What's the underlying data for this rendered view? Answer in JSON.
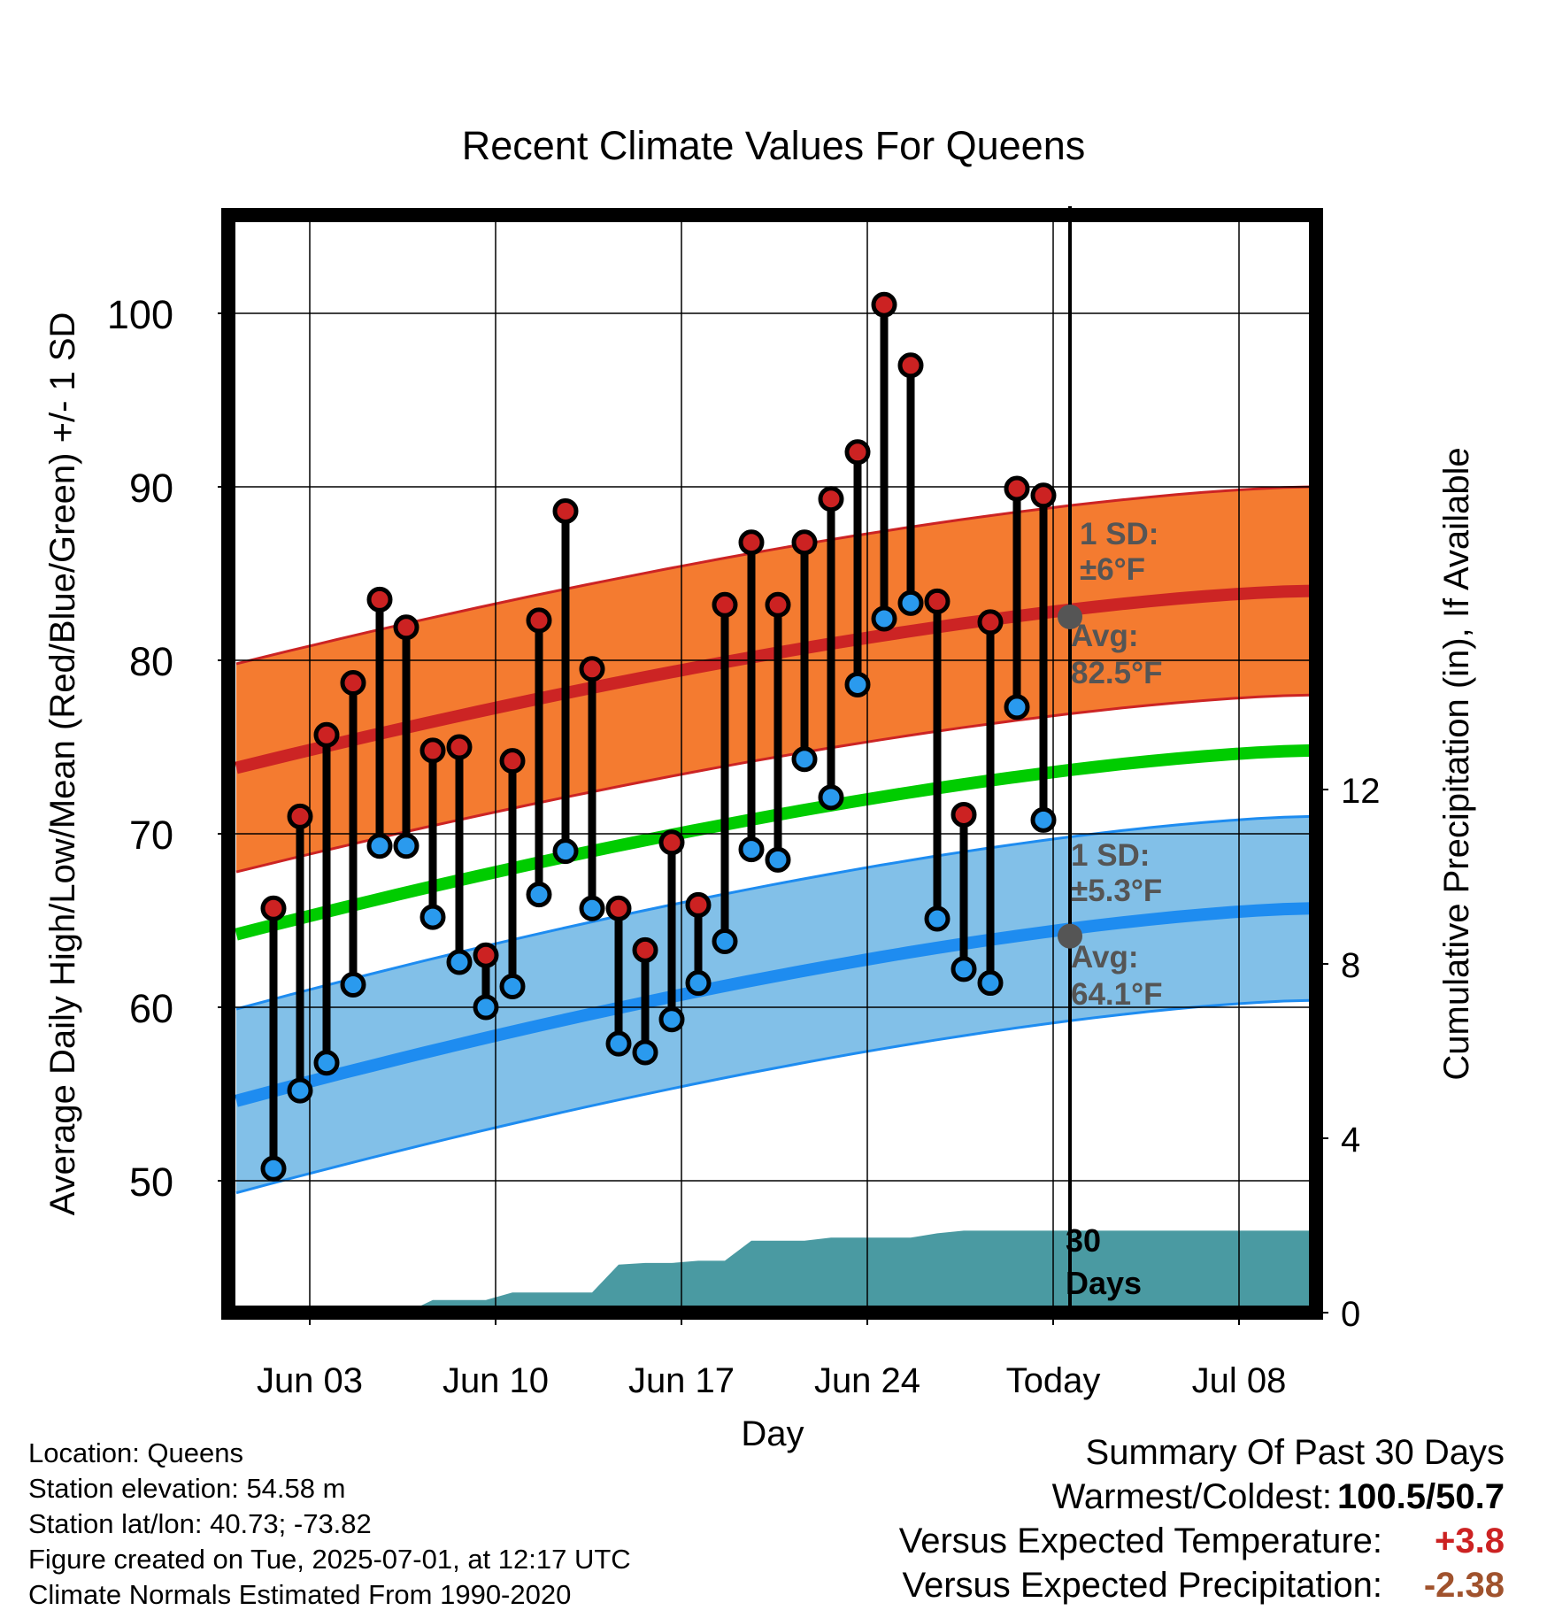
{
  "chart_data": {
    "type": "line",
    "title": "Recent Climate Values For Queens",
    "xlabel": "Day",
    "ylabel": "Average Daily High/Low/Mean (Red/Blue/Green) +/- 1 SD",
    "y2label": "Cumulative Precipitation (in), If Available",
    "x_ticks": [
      "Jun 03",
      "Jun 10",
      "Jun 17",
      "Jun 24",
      "Today",
      "Jul 08"
    ],
    "y_ticks": [
      "50",
      "60",
      "70",
      "80",
      "90",
      "100"
    ],
    "y2_ticks": [
      "0",
      "4",
      "8",
      "12"
    ],
    "ylim": [
      42,
      105
    ],
    "y2lim": [
      0,
      22.6
    ],
    "days": [
      "Jun 01",
      "Jun 02",
      "Jun 03",
      "Jun 04",
      "Jun 05",
      "Jun 06",
      "Jun 07",
      "Jun 08",
      "Jun 09",
      "Jun 10",
      "Jun 11",
      "Jun 12",
      "Jun 13",
      "Jun 14",
      "Jun 15",
      "Jun 16",
      "Jun 17",
      "Jun 18",
      "Jun 19",
      "Jun 20",
      "Jun 21",
      "Jun 22",
      "Jun 23",
      "Jun 24",
      "Jun 25",
      "Jun 26",
      "Jun 27",
      "Jun 28",
      "Jun 29",
      "Jun 30"
    ],
    "highs": [
      65.7,
      71.0,
      75.7,
      78.7,
      83.5,
      81.9,
      74.8,
      75.0,
      63.0,
      74.2,
      82.3,
      88.6,
      79.5,
      65.7,
      63.3,
      69.5,
      65.9,
      83.2,
      86.8,
      83.2,
      86.8,
      89.3,
      92.0,
      100.5,
      97.0,
      83.4,
      71.1,
      82.2,
      89.9,
      89.5
    ],
    "lows": [
      50.7,
      55.2,
      56.8,
      61.3,
      69.3,
      69.3,
      65.2,
      62.6,
      60.0,
      61.2,
      66.5,
      69.0,
      65.7,
      57.9,
      57.4,
      59.3,
      61.4,
      63.8,
      69.1,
      68.5,
      74.3,
      72.1,
      78.6,
      82.4,
      83.3,
      65.1,
      62.2,
      61.4,
      77.3,
      70.8
    ],
    "normals_x": [
      "May 31",
      "Jul 11"
    ],
    "normal_high_start": 73.8,
    "normal_high_end": 84.0,
    "normal_high_sd": 6,
    "normal_low_start": 54.6,
    "normal_low_end": 65.7,
    "normal_low_sd": 5.3,
    "normal_mean_start": 64.2,
    "normal_mean_end": 74.8,
    "precip_cumulative": [
      0,
      0,
      0,
      0,
      0,
      0,
      0,
      0.29,
      0.29,
      0.29,
      0.46,
      0.46,
      0.46,
      0.46,
      1.1,
      1.14,
      1.14,
      1.19,
      1.19,
      1.65,
      1.65,
      1.65,
      1.72,
      1.72,
      1.72,
      1.72,
      1.82,
      1.88,
      1.88,
      1.88,
      1.88
    ],
    "precip_x_days": [
      "May 31",
      "Jun 01",
      "Jun 02",
      "Jun 03",
      "Jun 04",
      "Jun 05",
      "Jun 06",
      "Jun 07",
      "Jun 08",
      "Jun 09",
      "Jun 10",
      "Jun 11",
      "Jun 12",
      "Jun 13",
      "Jun 14",
      "Jun 15",
      "Jun 16",
      "Jun 17",
      "Jun 18",
      "Jun 19",
      "Jun 20",
      "Jun 21",
      "Jun 22",
      "Jun 23",
      "Jun 24",
      "Jun 25",
      "Jun 26",
      "Jun 27",
      "Jun 28",
      "Jun 29",
      "Jun 30"
    ],
    "today": "Jul 01",
    "annotations": {
      "high_sd_label_1": "1 SD:",
      "high_sd_label_2": "±6°F",
      "high_avg_label_1": "Avg:",
      "high_avg_label_2": "82.5°F",
      "low_sd_label_1": "1 SD:",
      "low_sd_label_2": "±5.3°F",
      "low_avg_label_1": "Avg:",
      "low_avg_label_2": "64.1°F",
      "days_label_1": "30",
      "days_label_2": "Days"
    },
    "high_avg_today": 82.5,
    "low_avg_today": 64.1,
    "colors": {
      "high_band": "#f47b30",
      "high_line": "#cc2424",
      "low_band": "#82c0e8",
      "low_line": "#1e8cf0",
      "mean_line": "#00cc00",
      "precip": "#4a9aa2",
      "high_dot": "#cc2222",
      "low_dot": "#2a9aee"
    }
  },
  "footer": {
    "location": "Location: Queens",
    "elevation": "Station elevation: 54.58 m",
    "latlon": "Station lat/lon: 40.73; -73.82",
    "created": "Figure created on Tue, 2025-07-01, at 12:17 UTC",
    "normals": "Climate Normals Estimated From 1990-2020"
  },
  "summary": {
    "title": "Summary Of Past 30 Days",
    "warm_cold_label": "Warmest/Coldest:",
    "warm_cold_value": "100.5/50.7",
    "temp_label": "Versus Expected Temperature:",
    "temp_value": "+3.8",
    "temp_color": "#cc2222",
    "precip_label": "Versus Expected Precipitation:",
    "precip_value": "-2.38",
    "precip_color": "#a0522d"
  }
}
